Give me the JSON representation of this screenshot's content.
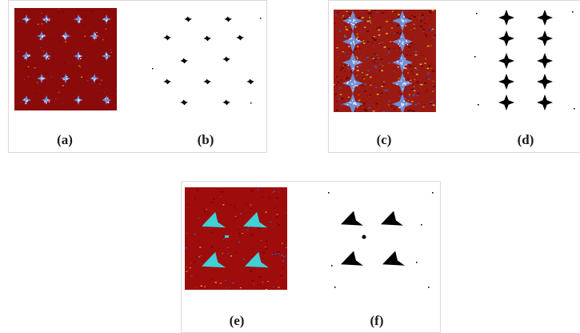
{
  "figure": {
    "panels": [
      {
        "id": "a",
        "label": "(a)",
        "kind": "heatmap",
        "background": "#8b0a0a",
        "blob": "star-small"
      },
      {
        "id": "b",
        "label": "(b)",
        "kind": "binary",
        "blob": "star-small"
      },
      {
        "id": "c",
        "label": "(c)",
        "kind": "heatmap",
        "background": "#9a1a12",
        "blob": "star-large"
      },
      {
        "id": "d",
        "label": "(d)",
        "kind": "binary",
        "blob": "star-large"
      },
      {
        "id": "e",
        "label": "(e)",
        "kind": "heatmap",
        "background": "#9e0c0c",
        "blob": "triangle"
      },
      {
        "id": "f",
        "label": "(f)",
        "kind": "binary",
        "blob": "triangle"
      }
    ],
    "colors": {
      "binary_blob": "#000000",
      "star_fill": "#6f8fd6",
      "star_speckle": "#e8eeff",
      "triangle_fill": "#3fd0d8",
      "noise_yellow": "#d8b21c",
      "noise_blue": "#3a5cc9",
      "noise_dark": "#5a0404"
    }
  }
}
